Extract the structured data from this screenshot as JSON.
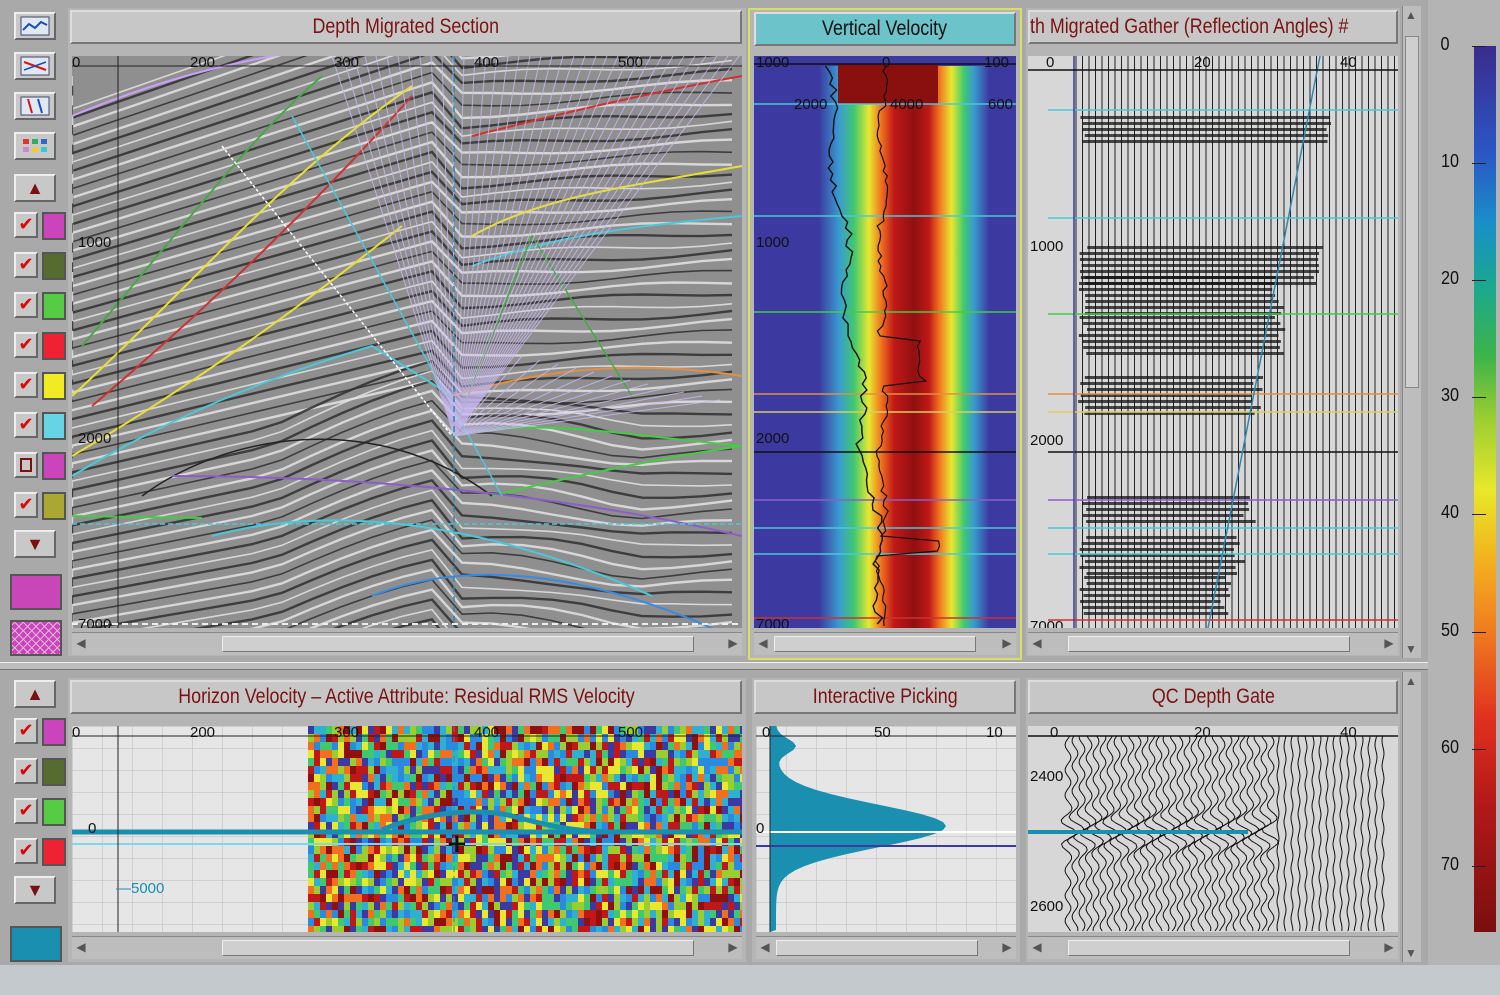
{
  "panels": {
    "depth_migrated": {
      "title": "Depth Migrated Section",
      "xticks": [
        "0",
        "200",
        "300",
        "400",
        "500"
      ],
      "yticks": [
        "1000",
        "2000",
        "7000"
      ]
    },
    "vertical_velocity": {
      "title": "Vertical Velocity",
      "xticks": [
        "1000",
        "0",
        "100"
      ],
      "xticks2": [
        "2000",
        "4000",
        "600"
      ],
      "yticks": [
        "1000",
        "2000",
        "7000"
      ]
    },
    "migrated_gather": {
      "title": "th Migrated Gather (Reflection Angles) #",
      "xticks": [
        "0",
        "20",
        "40"
      ],
      "yticks": [
        "1000",
        "2000",
        "7000"
      ]
    },
    "horizon_velocity": {
      "title": "Horizon Velocity – Active Attribute: Residual RMS Velocity",
      "xticks": [
        "0",
        "200",
        "300",
        "400",
        "500"
      ],
      "yticks": [
        "0",
        "5000"
      ]
    },
    "interactive_picking": {
      "title": "Interactive Picking",
      "xticks": [
        "0",
        "50",
        "10"
      ],
      "yticks": [
        "0"
      ]
    },
    "qc_depth_gate": {
      "title": "QC Depth Gate",
      "xticks": [
        "0",
        "20",
        "40"
      ],
      "yticks": [
        "2400",
        "2600"
      ]
    }
  },
  "layers_top": [
    {
      "checked": true,
      "color": "#cc44bb"
    },
    {
      "checked": true,
      "color": "#556b2f"
    },
    {
      "checked": true,
      "color": "#55cc44"
    },
    {
      "checked": true,
      "color": "#ee2233"
    },
    {
      "checked": true,
      "color": "#f2ea22"
    },
    {
      "checked": true,
      "color": "#66d4e4"
    },
    {
      "checked": false,
      "color": "#cc44bb"
    },
    {
      "checked": true,
      "color": "#aaa833"
    }
  ],
  "layers_bottom": [
    {
      "checked": true,
      "color": "#cc44bb"
    },
    {
      "checked": true,
      "color": "#556b2f"
    },
    {
      "checked": true,
      "color": "#55cc44"
    },
    {
      "checked": true,
      "color": "#ee2233"
    }
  ],
  "colorbar": {
    "labels": [
      "0",
      "10",
      "20",
      "30",
      "40",
      "50",
      "60",
      "70"
    ]
  },
  "icons": [
    "section-view-icon",
    "horizon-pick-icon",
    "fault-pick-icon",
    "grid-view-icon"
  ]
}
